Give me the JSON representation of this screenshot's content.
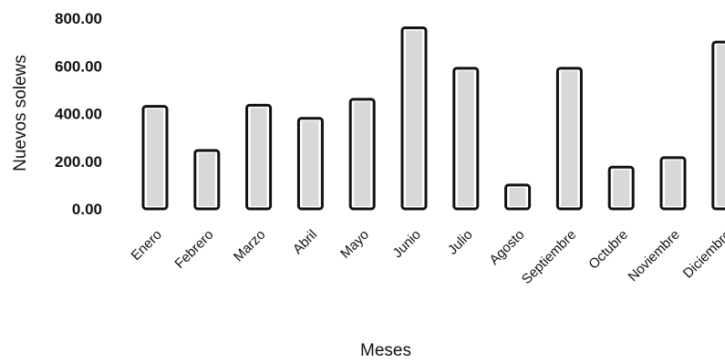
{
  "chart_data": {
    "type": "bar",
    "title": "",
    "xlabel": "Meses",
    "ylabel": "Nuevos solews",
    "ylim": [
      0,
      800
    ],
    "yticks": [
      "0.00",
      "200.00",
      "400.00",
      "600.00",
      "800.00"
    ],
    "categories": [
      "Enero",
      "Febrero",
      "Marzo",
      "Abril",
      "Mayo",
      "Junio",
      "Julio",
      "Agosto",
      "Septiembre",
      "Octubre",
      "Noviembre",
      "Diciembre"
    ],
    "values": [
      430,
      245,
      435,
      380,
      460,
      760,
      590,
      100,
      590,
      175,
      215,
      700
    ],
    "grid": false,
    "legend": "none",
    "bar_color": "#ffffff",
    "edge_color": "#111111"
  }
}
